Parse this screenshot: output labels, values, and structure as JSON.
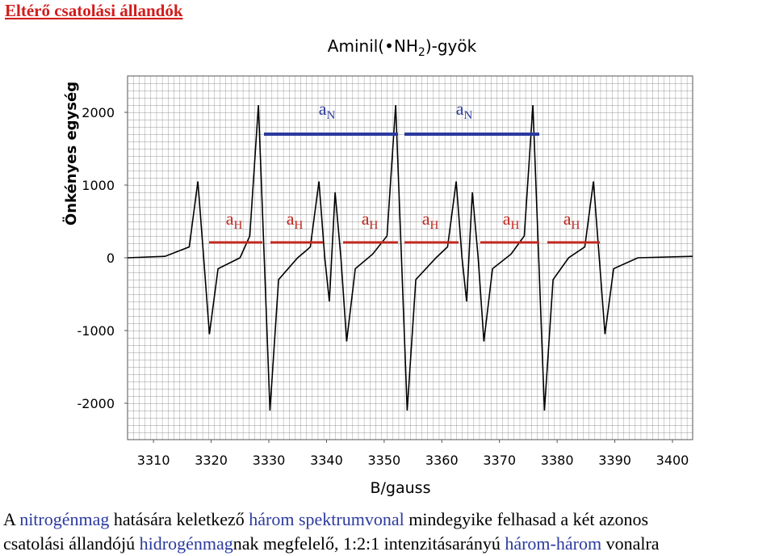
{
  "page_title": "Eltérő csatolási állandók",
  "chart_data": {
    "type": "line",
    "title": "Aminil(•NH",
    "title_sub": "2",
    "title_end": ")-gyök",
    "xlabel": "B/gauss",
    "ylabel": "Önkényes egység",
    "color": "#000000",
    "xlim": [
      3305.5,
      3403.5
    ],
    "ylim": [
      -2500,
      2500
    ],
    "xticks": [
      3310,
      3320,
      3330,
      3340,
      3350,
      3360,
      3370,
      3380,
      3390,
      3400
    ],
    "yticks": [
      2000,
      1000,
      0,
      -1000,
      -2000
    ],
    "x": [
      3305.5,
      3312,
      3316.2,
      3317.7,
      3318.7,
      3319.7,
      3321.2,
      3325,
      3326.7,
      3328.2,
      3329.2,
      3330.2,
      3331.7,
      3335,
      3336.5,
      3337.2,
      3338.7,
      3339.7,
      3340.5,
      3341.5,
      3342.5,
      3343.5,
      3345,
      3348,
      3350.5,
      3352,
      3353,
      3354,
      3355.5,
      3359,
      3361,
      3362.5,
      3363.5,
      3364.3,
      3365.3,
      3366.3,
      3367.3,
      3368.8,
      3372,
      3374.3,
      3375.8,
      3376.8,
      3377.8,
      3379.3,
      3382,
      3384.8,
      3386.3,
      3387.3,
      3388.3,
      3389.8,
      3394,
      3403.5
    ],
    "values": [
      0,
      20,
      150,
      1050,
      0,
      -1050,
      -150,
      0,
      300,
      2100,
      0,
      -2100,
      -300,
      0,
      100,
      150,
      1050,
      0,
      -600,
      900,
      0,
      -1150,
      -150,
      50,
      300,
      2100,
      0,
      -2100,
      -300,
      0,
      150,
      1050,
      0,
      -600,
      900,
      0,
      -1150,
      -150,
      50,
      300,
      2100,
      0,
      -2100,
      -300,
      0,
      150,
      1050,
      0,
      -1050,
      -150,
      0,
      20
    ],
    "annotations": [
      {
        "label": "a",
        "sub": "N",
        "color": "#2b3a9e"
      },
      {
        "label": "a",
        "sub": "N",
        "color": "#2b3a9e"
      },
      {
        "label": "a",
        "sub": "H",
        "color": "#c0271f"
      },
      {
        "label": "a",
        "sub": "H",
        "color": "#c0271f"
      },
      {
        "label": "a",
        "sub": "H",
        "color": "#c0271f"
      },
      {
        "label": "a",
        "sub": "H",
        "color": "#c0271f"
      },
      {
        "label": "a",
        "sub": "H",
        "color": "#c0271f"
      },
      {
        "label": "a",
        "sub": "H",
        "color": "#c0271f"
      }
    ]
  },
  "caption": [
    [
      {
        "text": "A ",
        "color": "#000000"
      },
      {
        "text": "nitrogénmag",
        "color": "#2b3a9e"
      },
      {
        "text": " hatására keletkező ",
        "color": "#000000"
      },
      {
        "text": "három spektrumvonal",
        "color": "#2b3a9e"
      },
      {
        "text": " mindegyike felhasad a két azonos",
        "color": "#000000"
      }
    ],
    [
      {
        "text": "csatolási állandójú ",
        "color": "#000000"
      },
      {
        "text": "hidrogénmag",
        "color": "#2b3a9e"
      },
      {
        "text": "nak megfelelő, 1:2:1 intenzitásarányú ",
        "color": "#000000"
      },
      {
        "text": "három-három",
        "color": "#2b3a9e"
      },
      {
        "text": " vonalra",
        "color": "#000000"
      }
    ]
  ]
}
